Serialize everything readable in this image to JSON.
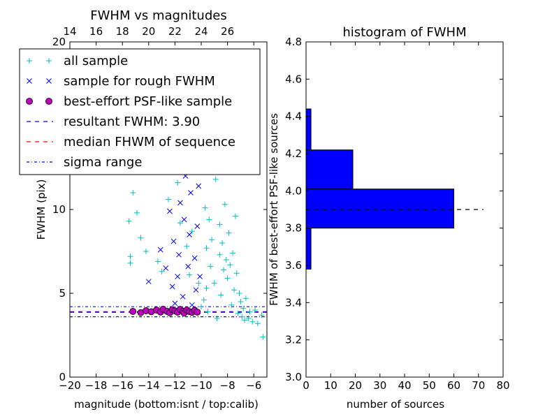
{
  "chart_data": [
    {
      "type": "scatter",
      "title": "FWHM vs magnitudes",
      "xlabel": "magnitude (bottom:isnt / top:calib)",
      "ylabel": "FWHM (pix)",
      "xlim": [
        -20,
        -5
      ],
      "ylim": [
        0,
        20
      ],
      "xticks": [
        -20,
        -18,
        -16,
        -14,
        -12,
        -10,
        -8,
        -6
      ],
      "xtick_labels": [
        "−20",
        "−18",
        "−16",
        "−14",
        "−12",
        "−10",
        "−8",
        "−6"
      ],
      "yticks": [
        0,
        5,
        10,
        20
      ],
      "ytick_labels": [
        "0",
        "5",
        "10",
        "20"
      ],
      "top_axis": {
        "offset_from_bottom": 34,
        "ticks": [
          14,
          16,
          18,
          20,
          22,
          24,
          26
        ],
        "tick_labels": [
          "14",
          "16",
          "18",
          "20",
          "22",
          "24",
          "26"
        ]
      },
      "legend": {
        "placement": "upper-left",
        "entries": [
          {
            "marker": "plus",
            "color": "#00bfbf",
            "label": "all sample"
          },
          {
            "marker": "cross",
            "color": "#0000ff",
            "label": "sample for rough FWHM"
          },
          {
            "marker": "circle",
            "color": "#bf00bf",
            "label": "best-effort PSF-like sample"
          },
          {
            "marker": "dashed",
            "color": "#0000ff",
            "label": "resultant FWHM: 3.90"
          },
          {
            "marker": "dashed",
            "color": "#ff0000",
            "label": "median FHWM of sequence"
          },
          {
            "marker": "dashdot",
            "color": "#0000ff",
            "label": "sigma range"
          }
        ]
      },
      "series": [
        {
          "color": "#00bfbf",
          "marker": "plus",
          "points": [
            [
              -15.5,
              9.3
            ],
            [
              -15.4,
              6.8
            ],
            [
              -15.4,
              7.2
            ],
            [
              -15.2,
              11.0
            ],
            [
              -14.9,
              9.8
            ],
            [
              -14.6,
              8.3
            ],
            [
              -14.2,
              7.5
            ],
            [
              -13.3,
              6.9
            ],
            [
              -13.0,
              6.3
            ],
            [
              -12.5,
              10.6
            ],
            [
              -11.8,
              11.6
            ],
            [
              -11.6,
              9.2
            ],
            [
              -11.1,
              7.8
            ],
            [
              -10.9,
              6.1
            ],
            [
              -10.7,
              8.7
            ],
            [
              -10.2,
              5.6
            ],
            [
              -9.8,
              4.6
            ],
            [
              -9.6,
              5.3
            ],
            [
              -9.9,
              13.2
            ],
            [
              -9.7,
              10.1
            ],
            [
              -9.4,
              9.4
            ],
            [
              -9.6,
              7.7
            ],
            [
              -9.3,
              6.6
            ],
            [
              -9.2,
              8.2
            ],
            [
              -9.0,
              5.6
            ],
            [
              -8.9,
              11.8
            ],
            [
              -8.7,
              13.5
            ],
            [
              -8.6,
              9.1
            ],
            [
              -8.6,
              7.3
            ],
            [
              -8.5,
              4.9
            ],
            [
              -8.4,
              8.0
            ],
            [
              -8.3,
              6.4
            ],
            [
              -8.2,
              10.3
            ],
            [
              -8.1,
              7.0
            ],
            [
              -8.0,
              5.9
            ],
            [
              -8.0,
              12.3
            ],
            [
              -7.9,
              8.6
            ],
            [
              -7.8,
              6.7
            ],
            [
              -7.7,
              4.3
            ],
            [
              -7.6,
              7.4
            ],
            [
              -7.5,
              5.2
            ],
            [
              -7.4,
              9.6
            ],
            [
              -7.3,
              6.2
            ],
            [
              -7.2,
              3.8
            ],
            [
              -7.1,
              5.0
            ],
            [
              -7.0,
              4.5
            ],
            [
              -6.9,
              3.6
            ],
            [
              -6.8,
              4.1
            ],
            [
              -6.7,
              3.4
            ],
            [
              -6.6,
              4.7
            ],
            [
              -6.4,
              3.5
            ],
            [
              -6.3,
              3.9
            ],
            [
              -6.1,
              3.3
            ],
            [
              -5.9,
              4.0
            ],
            [
              -5.7,
              3.2
            ],
            [
              -5.4,
              3.7
            ],
            [
              -5.3,
              2.4
            ],
            [
              -9.5,
              3.9
            ],
            [
              -8.8,
              3.5
            ],
            [
              -10.0,
              4.2
            ]
          ]
        },
        {
          "color": "#0000ff",
          "marker": "cross",
          "points": [
            [
              -14.0,
              5.7
            ],
            [
              -13.1,
              7.6
            ],
            [
              -12.7,
              6.5
            ],
            [
              -12.4,
              9.9
            ],
            [
              -12.0,
              4.4
            ],
            [
              -12.2,
              5.4
            ],
            [
              -11.8,
              6.0
            ],
            [
              -11.5,
              13.3
            ],
            [
              -11.7,
              7.3
            ],
            [
              -11.3,
              9.4
            ],
            [
              -11.4,
              4.8
            ],
            [
              -11.2,
              12.0
            ],
            [
              -11.0,
              6.6
            ],
            [
              -10.9,
              8.5
            ],
            [
              -10.8,
              11.0
            ],
            [
              -10.7,
              4.3
            ],
            [
              -10.6,
              13.0
            ],
            [
              -10.5,
              7.1
            ],
            [
              -10.4,
              5.2
            ],
            [
              -10.3,
              9.0
            ],
            [
              -10.2,
              11.4
            ],
            [
              -10.1,
              6.0
            ],
            [
              -10.5,
              4.0
            ],
            [
              -11.6,
              10.4
            ],
            [
              -12.1,
              8.1
            ]
          ]
        },
        {
          "color": "#bf00bf",
          "marker": "circle",
          "points": [
            [
              -15.2,
              3.92
            ],
            [
              -14.6,
              3.85
            ],
            [
              -14.2,
              3.96
            ],
            [
              -13.8,
              3.9
            ],
            [
              -13.4,
              4.0
            ],
            [
              -13.1,
              3.88
            ],
            [
              -12.9,
              4.05
            ],
            [
              -12.6,
              3.92
            ],
            [
              -12.4,
              3.84
            ],
            [
              -12.2,
              4.02
            ],
            [
              -12.0,
              3.95
            ],
            [
              -11.8,
              3.87
            ],
            [
              -11.6,
              4.04
            ],
            [
              -11.4,
              3.93
            ],
            [
              -11.3,
              3.82
            ],
            [
              -11.1,
              4.0
            ],
            [
              -10.9,
              3.91
            ],
            [
              -10.7,
              3.86
            ],
            [
              -10.5,
              3.98
            ],
            [
              -10.3,
              3.88
            ]
          ]
        }
      ],
      "hlines": [
        {
          "y": 3.9,
          "color": "#0000ff",
          "style": "dashed"
        },
        {
          "y": 3.86,
          "color": "#ff0000",
          "style": "dashed"
        },
        {
          "y": 4.2,
          "color": "#0000ff",
          "style": "dashdot"
        },
        {
          "y": 3.6,
          "color": "#0000ff",
          "style": "dashdot"
        }
      ]
    },
    {
      "type": "bar",
      "orientation": "horizontal",
      "title": "histogram of FWHM",
      "xlabel": "number of sources",
      "ylabel": "FWHM of best-effort PSF-like sources",
      "xlim": [
        0,
        80
      ],
      "ylim": [
        3.0,
        4.8
      ],
      "xticks": [
        0,
        10,
        20,
        30,
        40,
        50,
        60,
        70,
        80
      ],
      "yticks": [
        3.0,
        3.2,
        3.4,
        3.6,
        3.8,
        4.0,
        4.2,
        4.4,
        4.6,
        4.8
      ],
      "ytick_labels": [
        "3.0",
        "3.2",
        "3.4",
        "3.6",
        "3.8",
        "4.0",
        "4.2",
        "4.4",
        "4.6",
        "4.8"
      ],
      "bar_color": "#0000ff",
      "bins": [
        {
          "low": 3.58,
          "high": 3.8,
          "count": 2
        },
        {
          "low": 3.8,
          "high": 4.01,
          "count": 60
        },
        {
          "low": 4.01,
          "high": 4.22,
          "count": 19
        },
        {
          "low": 4.22,
          "high": 4.44,
          "count": 2
        }
      ],
      "reference_line": {
        "y": 3.9,
        "x_end": 72,
        "style": "dashed",
        "color": "#000000"
      }
    }
  ]
}
